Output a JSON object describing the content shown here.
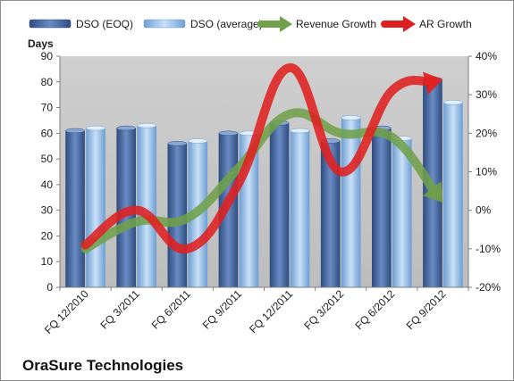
{
  "company": "OraSure Technologies",
  "chart_data": {
    "type": "bar",
    "categories": [
      "FQ 12/2010",
      "FQ 3/2011",
      "FQ 6/2011",
      "FQ 9/2011",
      "FQ 12/2011",
      "FQ 3/2012",
      "FQ 6/2012",
      "FQ 9/2012"
    ],
    "ylabel": "Days",
    "ylim": [
      0,
      90
    ],
    "yticks": [
      0,
      10,
      20,
      30,
      40,
      50,
      60,
      70,
      80,
      90
    ],
    "y2lim": [
      -20,
      40
    ],
    "y2ticks": [
      "-20%",
      "-10%",
      "0%",
      "10%",
      "20%",
      "30%",
      "40%"
    ],
    "y2tick_values": [
      -20,
      -10,
      0,
      10,
      20,
      30,
      40
    ],
    "grid": false,
    "legend_position": "top",
    "series": [
      {
        "name": "DSO (EOQ)",
        "kind": "bar",
        "axis": "left",
        "color": "#4f6fa3",
        "values": [
          61,
          62,
          56,
          60,
          64,
          57,
          62,
          81
        ]
      },
      {
        "name": "DSO (average)",
        "kind": "bar",
        "axis": "left",
        "color": "#9ec3ea",
        "values": [
          62,
          63,
          57,
          60,
          61,
          66,
          58,
          72
        ]
      },
      {
        "name": "Revenue Growth",
        "kind": "arrow-line",
        "axis": "right",
        "color": "#70a04a",
        "values": [
          -10,
          -3,
          -2,
          11,
          25,
          20,
          19,
          2
        ]
      },
      {
        "name": "AR Growth",
        "kind": "arrow-line",
        "axis": "right",
        "color": "#e02020",
        "values": [
          -9,
          0,
          -10,
          7,
          37,
          10,
          31,
          34
        ]
      }
    ]
  }
}
